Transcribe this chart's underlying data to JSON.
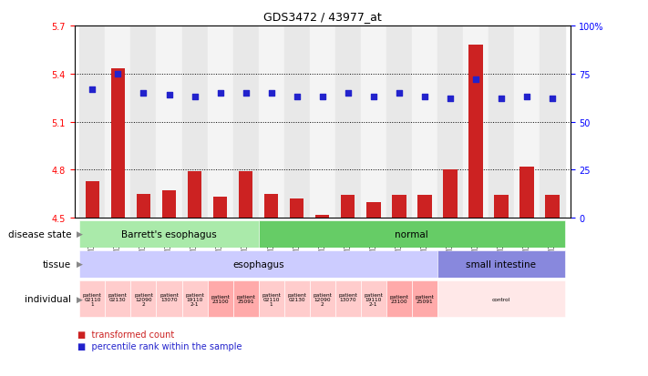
{
  "title": "GDS3472 / 43977_at",
  "samples": [
    "GSM327649",
    "GSM327650",
    "GSM327651",
    "GSM327652",
    "GSM327653",
    "GSM327654",
    "GSM327655",
    "GSM327642",
    "GSM327643",
    "GSM327644",
    "GSM327645",
    "GSM327646",
    "GSM327647",
    "GSM327648",
    "GSM327637",
    "GSM327638",
    "GSM327639",
    "GSM327640",
    "GSM327641"
  ],
  "bar_values": [
    4.73,
    5.43,
    4.65,
    4.67,
    4.79,
    4.63,
    4.79,
    4.65,
    4.62,
    4.52,
    4.64,
    4.6,
    4.64,
    4.64,
    4.8,
    5.58,
    4.64,
    4.82,
    4.64
  ],
  "dot_values": [
    67,
    75,
    65,
    64,
    63,
    65,
    65,
    65,
    63,
    63,
    65,
    63,
    65,
    63,
    62,
    72,
    62,
    63,
    62
  ],
  "ylim_left": [
    4.5,
    5.7
  ],
  "ylim_right": [
    0,
    100
  ],
  "yticks_left": [
    4.5,
    4.8,
    5.1,
    5.4,
    5.7
  ],
  "yticks_right": [
    0,
    25,
    50,
    75,
    100
  ],
  "ytick_right_labels": [
    "0",
    "25",
    "50",
    "75",
    "100%"
  ],
  "bar_color": "#cc2222",
  "dot_color": "#2222cc",
  "disease_state_groups": [
    {
      "label": "Barrett's esophagus",
      "start": 0,
      "end": 6,
      "color": "#aaeaaa"
    },
    {
      "label": "normal",
      "start": 7,
      "end": 18,
      "color": "#66cc66"
    }
  ],
  "tissue_groups": [
    {
      "label": "esophagus",
      "start": 0,
      "end": 13,
      "color": "#ccccff"
    },
    {
      "label": "small intestine",
      "start": 14,
      "end": 18,
      "color": "#8888dd"
    }
  ],
  "individual_cells": [
    {
      "label": "patient\n02110\n1",
      "start": 0,
      "end": 0,
      "color": "#ffcccc"
    },
    {
      "label": "patient\n02130\n ",
      "start": 1,
      "end": 1,
      "color": "#ffcccc"
    },
    {
      "label": "patient\n12090\n2",
      "start": 2,
      "end": 2,
      "color": "#ffcccc"
    },
    {
      "label": "patient\n13070\n ",
      "start": 3,
      "end": 3,
      "color": "#ffcccc"
    },
    {
      "label": "patient\n19110\n2-1",
      "start": 4,
      "end": 4,
      "color": "#ffcccc"
    },
    {
      "label": "patient\n23100",
      "start": 5,
      "end": 5,
      "color": "#ffaaaa"
    },
    {
      "label": "patient\n25091",
      "start": 6,
      "end": 6,
      "color": "#ffaaaa"
    },
    {
      "label": "patient\n02110\n1",
      "start": 7,
      "end": 7,
      "color": "#ffcccc"
    },
    {
      "label": "patient\n02130\n ",
      "start": 8,
      "end": 8,
      "color": "#ffcccc"
    },
    {
      "label": "patient\n12090\n2",
      "start": 9,
      "end": 9,
      "color": "#ffcccc"
    },
    {
      "label": "patient\n13070\n ",
      "start": 10,
      "end": 10,
      "color": "#ffcccc"
    },
    {
      "label": "patient\n19110\n2-1",
      "start": 11,
      "end": 11,
      "color": "#ffcccc"
    },
    {
      "label": "patient\n23100",
      "start": 12,
      "end": 12,
      "color": "#ffaaaa"
    },
    {
      "label": "patient\n25091",
      "start": 13,
      "end": 13,
      "color": "#ffaaaa"
    },
    {
      "label": "control",
      "start": 14,
      "end": 18,
      "color": "#ffe8e8"
    }
  ],
  "col_colors": [
    "#e8e8e8",
    "#f4f4f4"
  ],
  "bg_color": "#ffffff"
}
